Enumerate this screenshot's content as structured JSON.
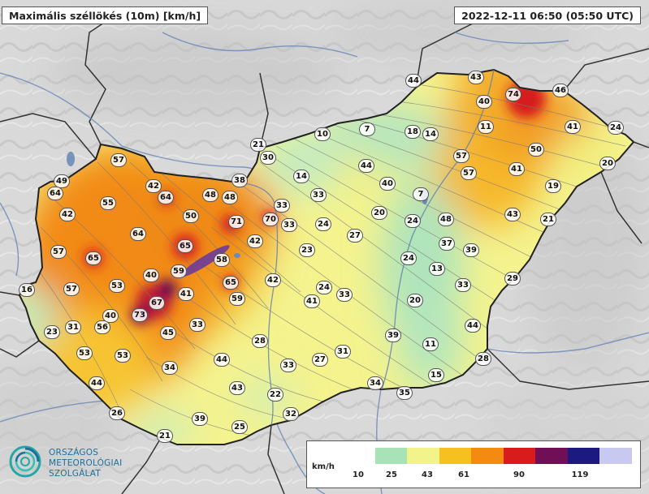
{
  "header": {
    "title": "Maximális széllökés (10m) [km/h]",
    "timestamp": "2022-12-11 06:50 (05:50 UTC)"
  },
  "legend": {
    "unit": "km/h",
    "ticks": [
      "10",
      "25",
      "43",
      "61",
      "90",
      "119"
    ],
    "colors": [
      "#ffffff",
      "#a8e3b8",
      "#f2f38a",
      "#f6c020",
      "#f58a10",
      "#d81b1b",
      "#700f55",
      "#1c1a80",
      "#c8c8f0"
    ]
  },
  "logo": {
    "lines": [
      "ORSZÁGOS",
      "METEOROLÓGIAI",
      "SZOLGÁLAT"
    ]
  },
  "stations": [
    {
      "v": "44"
    },
    {
      "v": "43"
    },
    {
      "v": "74"
    },
    {
      "v": "46"
    },
    {
      "v": "40"
    },
    {
      "v": "11"
    },
    {
      "v": "41"
    },
    {
      "v": "24"
    },
    {
      "v": "20"
    },
    {
      "v": "50"
    },
    {
      "v": "57"
    },
    {
      "v": "57"
    },
    {
      "v": "41"
    },
    {
      "v": "19"
    },
    {
      "v": "10"
    },
    {
      "v": "7"
    },
    {
      "v": "18"
    },
    {
      "v": "14"
    },
    {
      "v": "21"
    },
    {
      "v": "30"
    },
    {
      "v": "14"
    },
    {
      "v": "44"
    },
    {
      "v": "40"
    },
    {
      "v": "57"
    },
    {
      "v": "42"
    },
    {
      "v": "38"
    },
    {
      "v": "49"
    },
    {
      "v": "64"
    },
    {
      "v": "55"
    },
    {
      "v": "64"
    },
    {
      "v": "48"
    },
    {
      "v": "48"
    },
    {
      "v": "33"
    },
    {
      "v": "33"
    },
    {
      "v": "7"
    },
    {
      "v": "20"
    },
    {
      "v": "24"
    },
    {
      "v": "48"
    },
    {
      "v": "43"
    },
    {
      "v": "21"
    },
    {
      "v": "42"
    },
    {
      "v": "50"
    },
    {
      "v": "71"
    },
    {
      "v": "70"
    },
    {
      "v": "33"
    },
    {
      "v": "24"
    },
    {
      "v": "27"
    },
    {
      "v": "64"
    },
    {
      "v": "57"
    },
    {
      "v": "65"
    },
    {
      "v": "65"
    },
    {
      "v": "42"
    },
    {
      "v": "23"
    },
    {
      "v": "37"
    },
    {
      "v": "39"
    },
    {
      "v": "58"
    },
    {
      "v": "24"
    },
    {
      "v": "13"
    },
    {
      "v": "59"
    },
    {
      "v": "40"
    },
    {
      "v": "57"
    },
    {
      "v": "53"
    },
    {
      "v": "65"
    },
    {
      "v": "42"
    },
    {
      "v": "33"
    },
    {
      "v": "29"
    },
    {
      "v": "16"
    },
    {
      "v": "41"
    },
    {
      "v": "59"
    },
    {
      "v": "67"
    },
    {
      "v": "24"
    },
    {
      "v": "33"
    },
    {
      "v": "41"
    },
    {
      "v": "20"
    },
    {
      "v": "40"
    },
    {
      "v": "73"
    },
    {
      "v": "31"
    },
    {
      "v": "56"
    },
    {
      "v": "45"
    },
    {
      "v": "33"
    },
    {
      "v": "23"
    },
    {
      "v": "44"
    },
    {
      "v": "39"
    },
    {
      "v": "28"
    },
    {
      "v": "53"
    },
    {
      "v": "53"
    },
    {
      "v": "31"
    },
    {
      "v": "11"
    },
    {
      "v": "44"
    },
    {
      "v": "27"
    },
    {
      "v": "34"
    },
    {
      "v": "28"
    },
    {
      "v": "33"
    },
    {
      "v": "15"
    },
    {
      "v": "44"
    },
    {
      "v": "43"
    },
    {
      "v": "34"
    },
    {
      "v": "35"
    },
    {
      "v": "22"
    },
    {
      "v": "26"
    },
    {
      "v": "32"
    },
    {
      "v": "39"
    },
    {
      "v": "25"
    },
    {
      "v": "21"
    }
  ]
}
